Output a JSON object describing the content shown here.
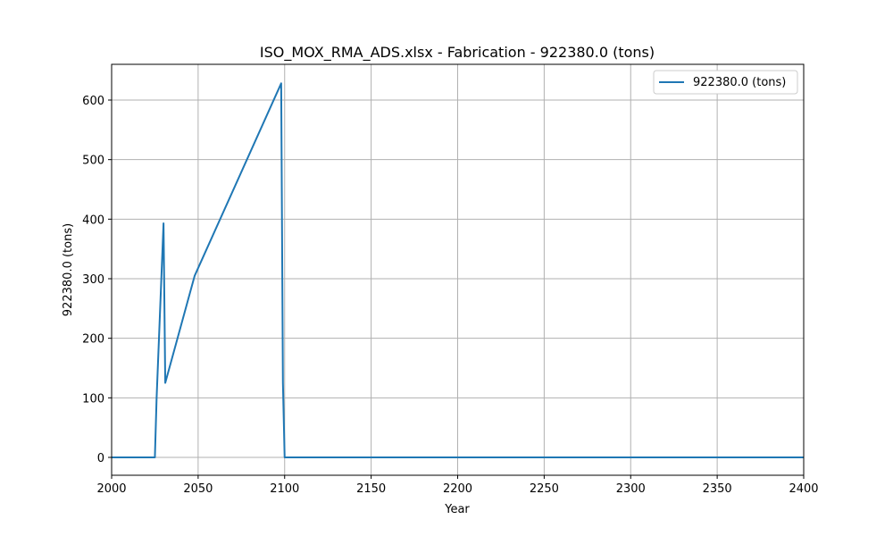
{
  "chart_data": {
    "type": "line",
    "title": "ISO_MOX_RMA_ADS.xlsx - Fabrication - 922380.0 (tons)",
    "xlabel": "Year",
    "ylabel": "922380.0 (tons)",
    "xlim": [
      2000,
      2400
    ],
    "ylim": [
      -30,
      660
    ],
    "xticks": [
      2000,
      2050,
      2100,
      2150,
      2200,
      2250,
      2300,
      2350,
      2400
    ],
    "yticks": [
      0,
      100,
      200,
      300,
      400,
      500,
      600
    ],
    "grid": true,
    "legend_position": "top-right",
    "series": [
      {
        "name": "922380.0 (tons)",
        "color": "#1f77b4",
        "points": [
          [
            2000,
            0
          ],
          [
            2025,
            0
          ],
          [
            2026,
            100
          ],
          [
            2030,
            393
          ],
          [
            2031,
            125
          ],
          [
            2048,
            305
          ],
          [
            2098,
            628
          ],
          [
            2099,
            125
          ],
          [
            2100,
            0
          ],
          [
            2400,
            0
          ]
        ]
      }
    ]
  }
}
